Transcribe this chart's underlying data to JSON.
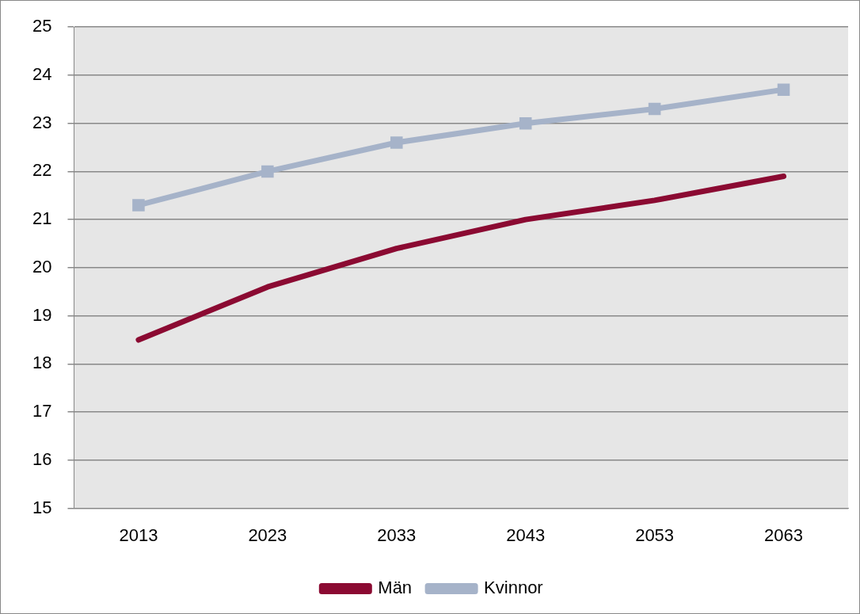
{
  "chart_data": {
    "type": "line",
    "categories": [
      "2013",
      "2023",
      "2033",
      "2043",
      "2053",
      "2063"
    ],
    "series": [
      {
        "name": "Män",
        "color": "#8b0a32",
        "values": [
          18.5,
          19.6,
          20.4,
          21.0,
          21.4,
          21.9
        ],
        "marker": "none"
      },
      {
        "name": "Kvinnor",
        "color": "#a6b3c9",
        "values": [
          21.3,
          22.0,
          22.6,
          23.0,
          23.3,
          23.7
        ],
        "marker": "square"
      }
    ],
    "ylim": [
      15,
      25
    ],
    "yticks": [
      15,
      16,
      17,
      18,
      19,
      20,
      21,
      22,
      23,
      24,
      25
    ],
    "grid": "y",
    "legend": "bottom"
  }
}
